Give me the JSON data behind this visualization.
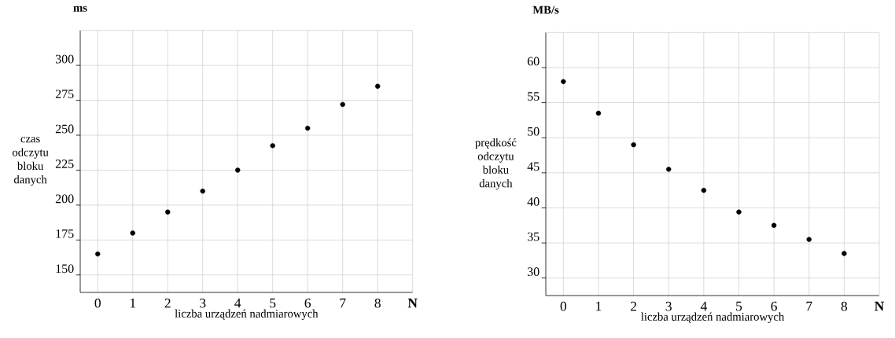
{
  "chart_data": [
    {
      "type": "scatter",
      "title": "ms",
      "ylabel": "czas odczytu bloku danych",
      "xlabel": "liczba urządzeń nadmiarowych",
      "annotations": [
        "N"
      ],
      "x": [
        0,
        1,
        2,
        3,
        4,
        5,
        6,
        7,
        8
      ],
      "series": [
        {
          "color": "#000000",
          "values": [
            165,
            180,
            195,
            210,
            225,
            242.5,
            255,
            272,
            285
          ]
        }
      ],
      "xlim": [
        -0.5,
        9
      ],
      "xticks": [
        0,
        1,
        2,
        3,
        4,
        5,
        6,
        7,
        8
      ],
      "ylim": [
        137.5,
        325
      ],
      "yticks": [
        150,
        175,
        200,
        225,
        250,
        275,
        300
      ],
      "grid": true,
      "marker": "circle"
    },
    {
      "type": "scatter",
      "title": "MB/s",
      "ylabel": "prędkość odczytu bloku danych",
      "xlabel": "liczba urządzeń nadmiarowych",
      "annotations": [
        "N"
      ],
      "x": [
        0,
        1,
        2,
        3,
        4,
        5,
        6,
        7,
        8
      ],
      "series": [
        {
          "color": "#000000",
          "values": [
            58,
            53.5,
            49,
            45.5,
            42.5,
            39.4,
            37.5,
            35.5,
            33.5
          ]
        }
      ],
      "xlim": [
        -0.5,
        9
      ],
      "xticks": [
        0,
        1,
        2,
        3,
        4,
        5,
        6,
        7,
        8
      ],
      "ylim": [
        27.5,
        65
      ],
      "yticks": [
        30,
        35,
        40,
        45,
        50,
        55,
        60
      ],
      "grid": true,
      "marker": "circle"
    }
  ]
}
